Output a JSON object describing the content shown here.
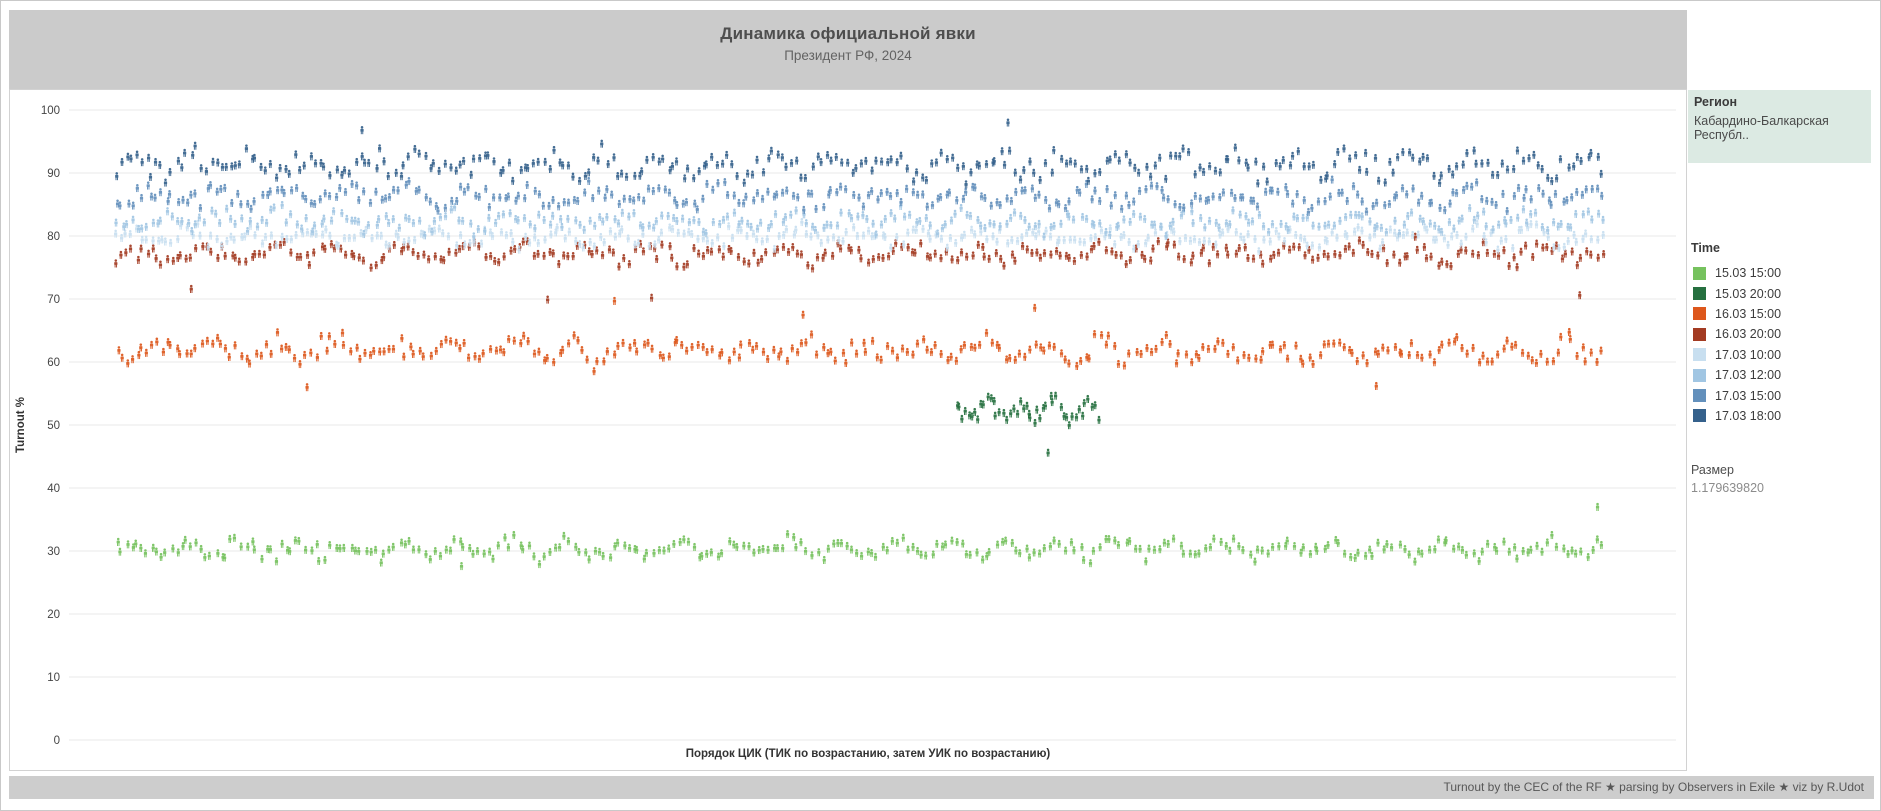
{
  "chart_data": {
    "type": "scatter",
    "title": "Динамика официальной явки",
    "subtitle": "Президент РФ, 2024",
    "xlabel": "Порядок ЦИК (ТИК по возрастанию, затем УИК по возрастанию)",
    "ylabel": "Turnout %",
    "ylim": [
      0,
      100
    ],
    "yticks": [
      0,
      10,
      20,
      30,
      40,
      50,
      60,
      70,
      80,
      90,
      100
    ],
    "xticks": [],
    "grid": "horizontal",
    "legend_position": "right",
    "marker": "person-icon",
    "series": [
      {
        "name": "15.03 15:00",
        "color": "#76c25e",
        "count": 300,
        "x_span": [
          0,
          1
        ],
        "center": 30.3,
        "sigma": 0.75,
        "wave_amp": 0.8,
        "wave_freq": 0.57,
        "min": 27.4,
        "max": 33.6,
        "outliers": [
          {
            "fx": 0.997,
            "v": 37.0
          },
          {
            "fx": 0.232,
            "v": 27.6
          }
        ]
      },
      {
        "name": "15.03 20:00",
        "color": "#26703f",
        "count": 46,
        "x_span": [
          0.565,
          0.66
        ],
        "center": 52.3,
        "sigma": 0.8,
        "wave_amp": 1.0,
        "wave_freq": 0.6,
        "min": 49.4,
        "max": 55.0,
        "outliers": [
          {
            "fx": 0.627,
            "v": 45.6
          }
        ]
      },
      {
        "name": "16.03 15:00",
        "color": "#dd571c",
        "count": 300,
        "x_span": [
          0,
          1
        ],
        "center": 61.8,
        "sigma": 1.05,
        "wave_amp": 1.2,
        "wave_freq": 0.53,
        "min": 57.2,
        "max": 66.8,
        "outliers": [
          {
            "fx": 0.335,
            "v": 69.7
          },
          {
            "fx": 0.618,
            "v": 68.6
          },
          {
            "fx": 0.128,
            "v": 56.0
          },
          {
            "fx": 0.848,
            "v": 56.2
          },
          {
            "fx": 0.462,
            "v": 67.5
          }
        ]
      },
      {
        "name": "16.03 20:00",
        "color": "#a33b22",
        "count": 300,
        "x_span": [
          0,
          1
        ],
        "center": 77.2,
        "sigma": 0.85,
        "wave_amp": 1.0,
        "wave_freq": 0.49,
        "min": 72.6,
        "max": 80.8,
        "outliers": [
          {
            "fx": 0.36,
            "v": 70.2
          },
          {
            "fx": 0.05,
            "v": 71.6
          },
          {
            "fx": 0.985,
            "v": 70.6
          },
          {
            "fx": 0.29,
            "v": 69.9
          }
        ]
      },
      {
        "name": "17.03 10:00",
        "color": "#c8dff0",
        "count": 300,
        "x_span": [
          0,
          1
        ],
        "center": 79.8,
        "sigma": 0.8,
        "wave_amp": 0.9,
        "wave_freq": 0.51,
        "min": 76.4,
        "max": 83.4,
        "outliers": []
      },
      {
        "name": "17.03 12:00",
        "color": "#a1c6e3",
        "count": 300,
        "x_span": [
          0,
          1
        ],
        "center": 82.3,
        "sigma": 0.8,
        "wave_amp": 0.9,
        "wave_freq": 0.55,
        "min": 79.0,
        "max": 86.4,
        "outliers": []
      },
      {
        "name": "17.03 15:00",
        "color": "#6390bc",
        "count": 300,
        "x_span": [
          0,
          1
        ],
        "center": 86.3,
        "sigma": 0.9,
        "wave_amp": 1.0,
        "wave_freq": 0.5,
        "min": 82.6,
        "max": 91.0,
        "outliers": []
      },
      {
        "name": "17.03 18:00",
        "color": "#35618c",
        "count": 300,
        "x_span": [
          0,
          1
        ],
        "center": 91.2,
        "sigma": 1.1,
        "wave_amp": 1.3,
        "wave_freq": 0.54,
        "min": 87.0,
        "max": 97.4,
        "outliers": [
          {
            "fx": 0.6,
            "v": 98.0
          },
          {
            "fx": 0.165,
            "v": 96.8
          }
        ]
      }
    ]
  },
  "legend": {
    "title": "Time"
  },
  "filters": {
    "region": {
      "label": "Регион",
      "value": "Кабардино-Балкарская Республ.."
    }
  },
  "size_legend": {
    "label": "Размер",
    "value": "1.179639820"
  },
  "footer": {
    "credit": "Turnout by the CEC of the RF ★ parsing by Observers in Exile ★ viz by R.Udot"
  },
  "colors": {
    "band_gray": "#cbcbcb",
    "footer_gray": "#cdcdcd",
    "region_card": "#dceae3",
    "gridline": "#e8e8e8"
  }
}
